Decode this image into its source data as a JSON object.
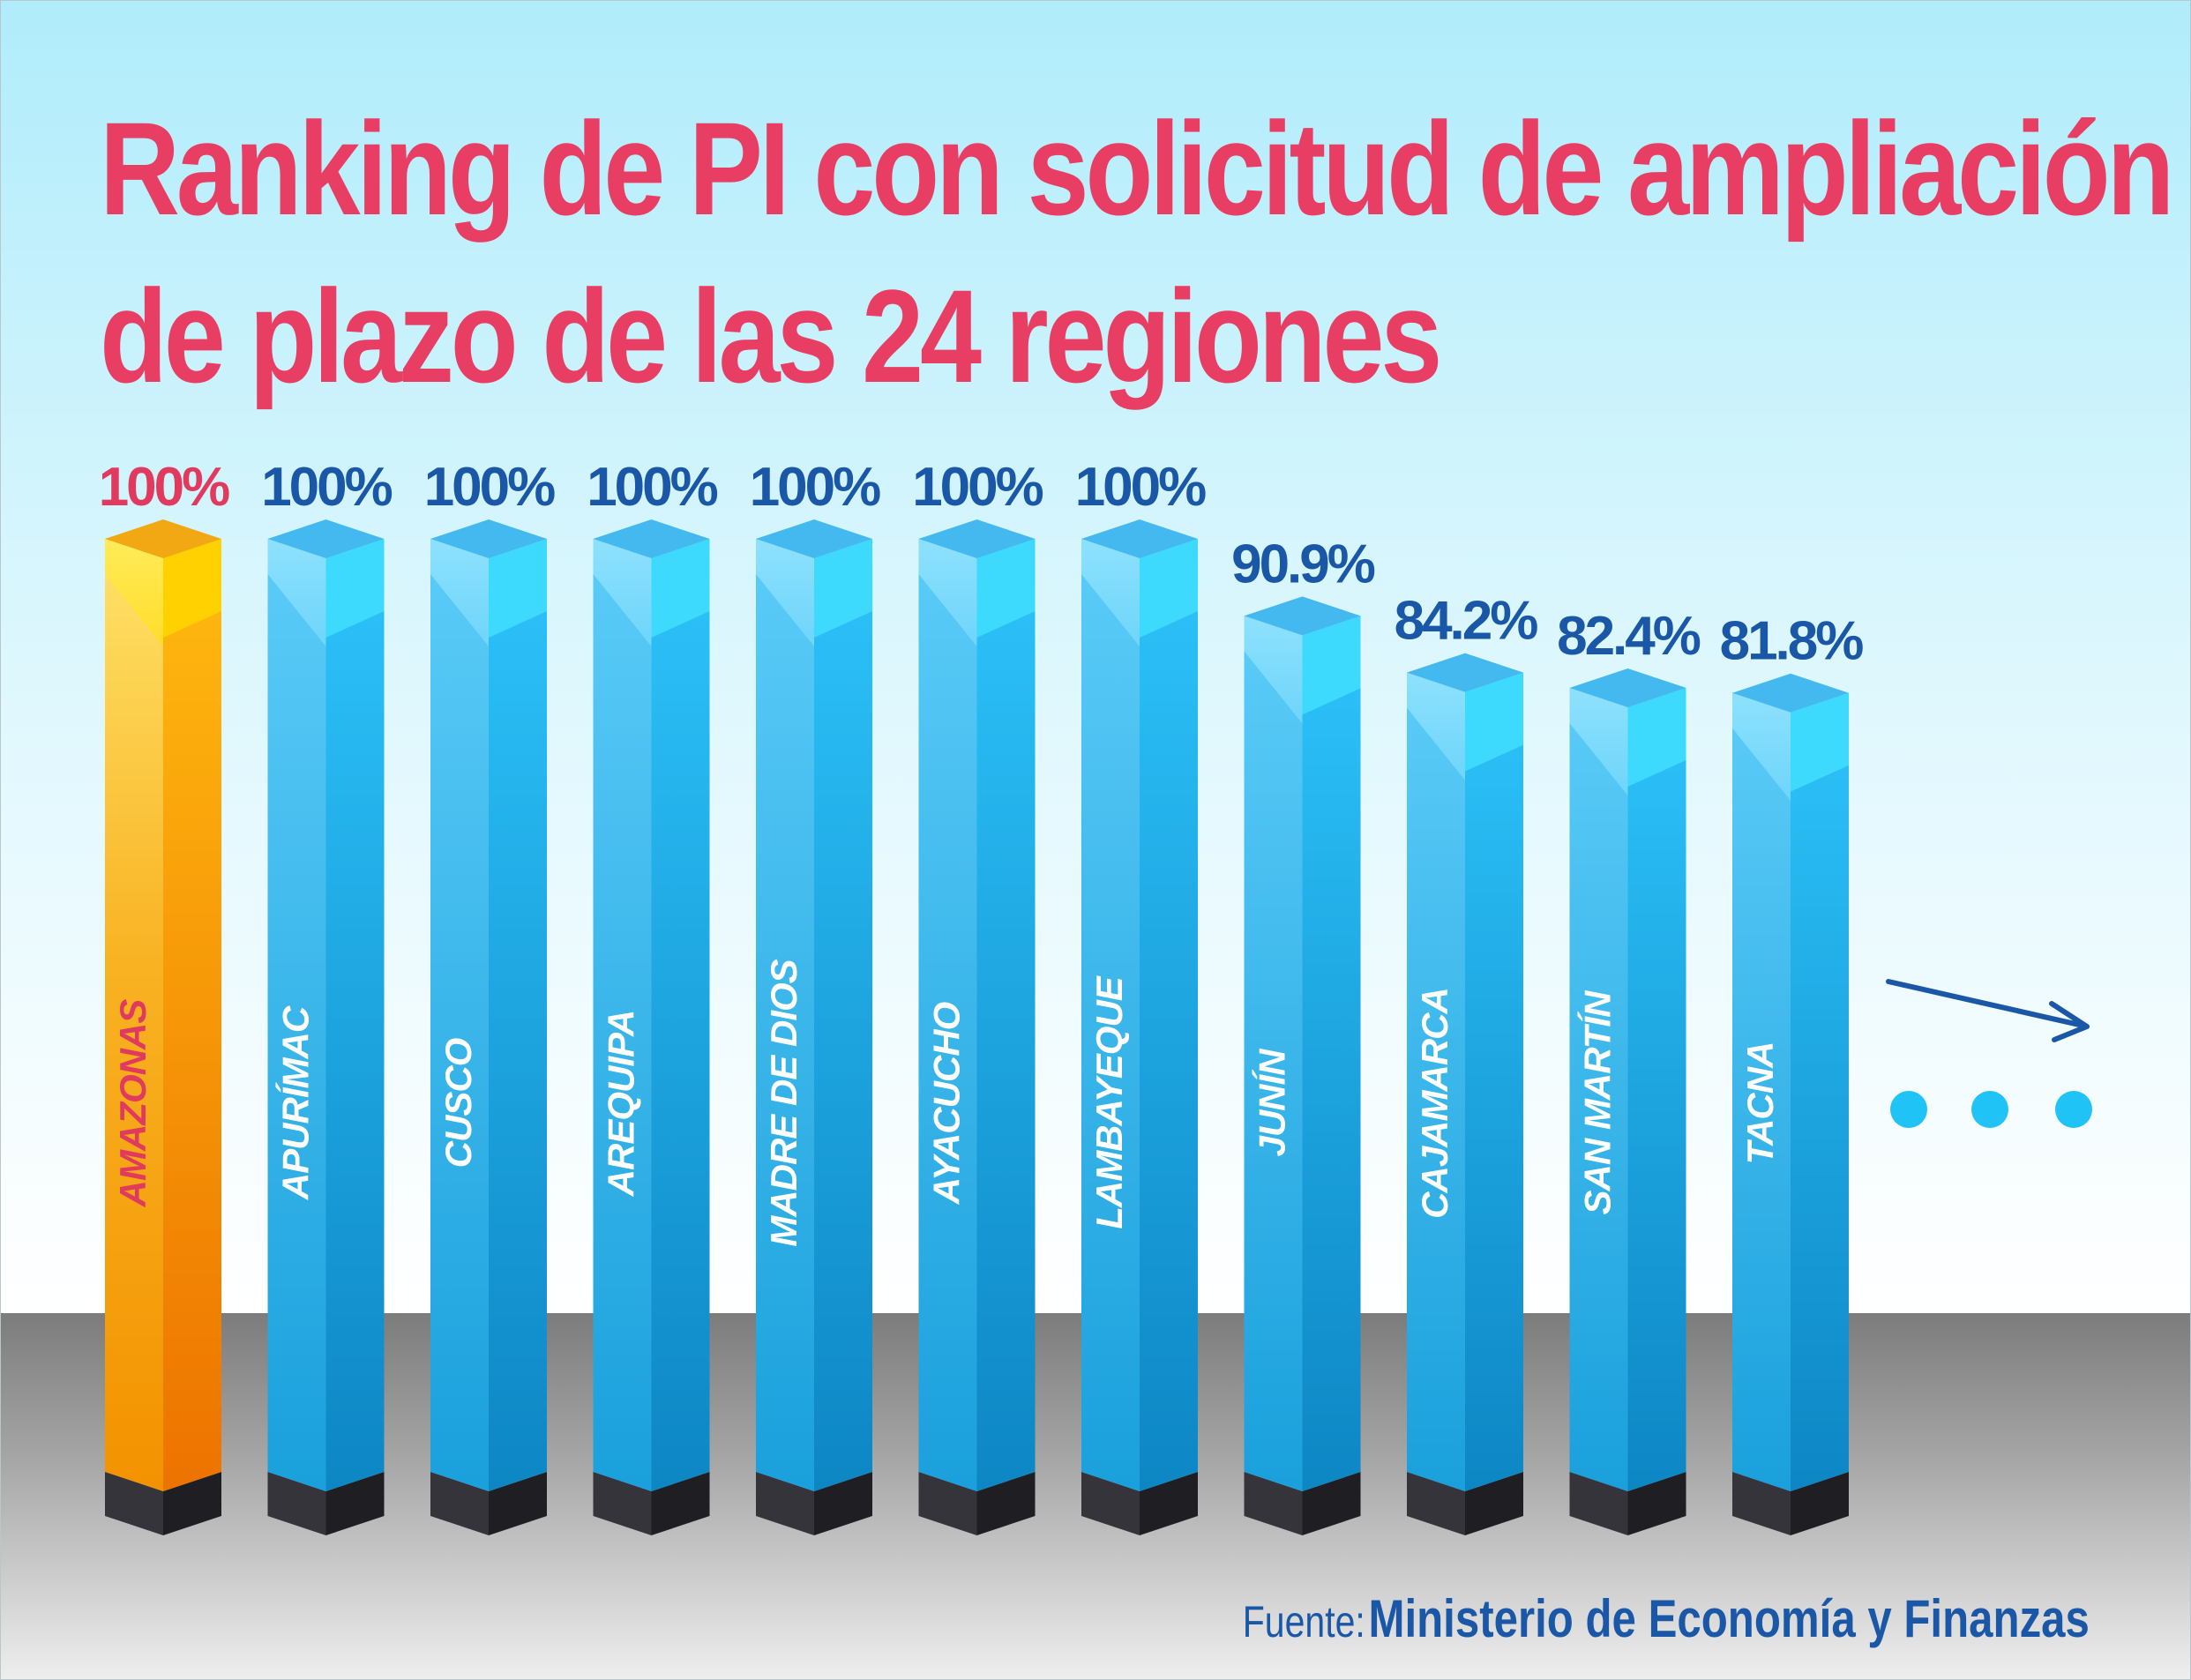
{
  "title": {
    "line1": "Ranking de PI con solicitud de ampliación",
    "line2": "de plazo de las 24 regiones"
  },
  "chart_data": {
    "type": "bar",
    "title": "Ranking de PI con solicitud de ampliación de plazo de las 24 regiones",
    "categories": [
      "AMAZONAS",
      "APURÍMAC",
      "CUSCO",
      "AREQUIPA",
      "MADRE DE DIOS",
      "AYACUCHO",
      "LAMBAYEQUE",
      "JUNÍN",
      "CAJAMARCA",
      "SAN MARTÍN",
      "TACNA"
    ],
    "values": [
      100,
      100,
      100,
      100,
      100,
      100,
      100,
      90.9,
      84.2,
      82.4,
      81.8
    ],
    "value_labels": [
      "100%",
      "100%",
      "100%",
      "100%",
      "100%",
      "100%",
      "100%",
      "90.9%",
      "84.2%",
      "82.4%",
      "81.8%"
    ],
    "highlighted_category": "AMAZONAS",
    "ylim": [
      0,
      100
    ],
    "grid": false,
    "legend": "none",
    "xlabel": "",
    "ylabel": ""
  },
  "source": {
    "prefix": "Fuente:",
    "name": "Ministerio de  Economía y Finanzas"
  },
  "colors": {
    "title": "#e83e63",
    "highlight_label": "#e03a5e",
    "value_label": "#1a57a6",
    "highlight_bar": "#f5a000",
    "bar": "#1fa5e3",
    "base": "#2b2b2f",
    "dots": "#1fc3f5",
    "arrow": "#1a57a6"
  },
  "icons": [
    "continuation-arrow-icon",
    "ellipsis-dots-icon"
  ]
}
